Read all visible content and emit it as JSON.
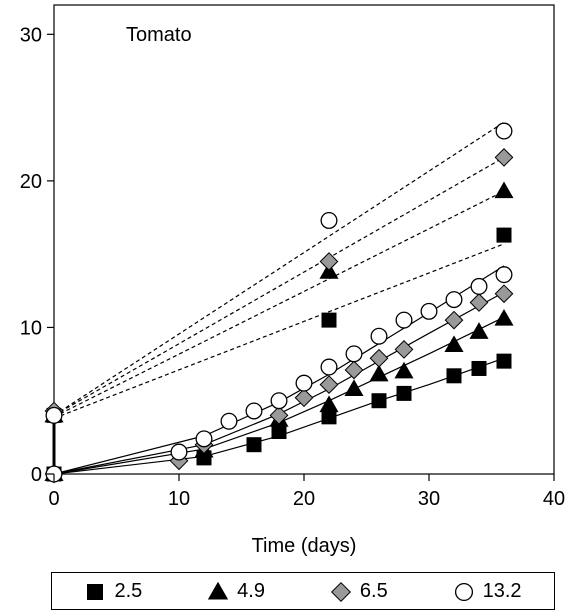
{
  "chart_data": {
    "type": "scatter",
    "title": "Tomato",
    "xlabel": "Time (days)",
    "ylabel": "",
    "xlim": [
      0,
      40
    ],
    "ylim": [
      0,
      32
    ],
    "xticks": [
      0,
      10,
      20,
      30,
      40
    ],
    "yticks": [
      0,
      10,
      20,
      30
    ],
    "grid": false,
    "legend_position": "bottom",
    "series": [
      {
        "name": "2.5",
        "marker": "square",
        "color": "#000000",
        "points": [
          [
            0,
            0
          ],
          [
            0,
            4.0
          ],
          [
            12,
            1.1
          ],
          [
            16,
            2.0
          ],
          [
            18,
            2.9
          ],
          [
            22,
            3.9
          ],
          [
            26,
            5.0
          ],
          [
            28,
            5.5
          ],
          [
            32,
            6.7
          ],
          [
            34,
            7.2
          ],
          [
            36,
            7.7
          ]
        ],
        "dashed_points": [
          [
            22,
            10.5
          ],
          [
            36,
            16.3
          ]
        ],
        "solid_fit": [
          [
            0,
            0
          ],
          [
            12,
            1.2
          ],
          [
            18,
            2.6
          ],
          [
            22,
            3.8
          ],
          [
            26,
            5.0
          ],
          [
            30,
            6.1
          ],
          [
            36,
            7.9
          ]
        ],
        "dashed_fit": [
          [
            0,
            3.8
          ],
          [
            36,
            15.7
          ]
        ]
      },
      {
        "name": "4.9",
        "marker": "triangle",
        "color": "#000000",
        "points": [
          [
            0,
            0
          ],
          [
            0,
            4.0
          ],
          [
            12,
            1.6
          ],
          [
            18,
            3.7
          ],
          [
            22,
            4.7
          ],
          [
            24,
            5.8
          ],
          [
            26,
            6.8
          ],
          [
            28,
            7.0
          ],
          [
            32,
            8.8
          ],
          [
            34,
            9.7
          ],
          [
            36,
            10.6
          ]
        ],
        "dashed_points": [
          [
            22,
            13.8
          ],
          [
            36,
            19.3
          ]
        ],
        "solid_fit": [
          [
            0,
            0
          ],
          [
            12,
            1.7
          ],
          [
            18,
            3.5
          ],
          [
            22,
            5.0
          ],
          [
            26,
            6.6
          ],
          [
            30,
            8.2
          ],
          [
            36,
            10.7
          ]
        ],
        "dashed_fit": [
          [
            0,
            3.9
          ],
          [
            36,
            19.3
          ]
        ]
      },
      {
        "name": "6.5",
        "marker": "diamond",
        "color": "#999999",
        "points": [
          [
            0,
            0
          ],
          [
            0,
            4.3
          ],
          [
            10,
            0.9
          ],
          [
            12,
            2.0
          ],
          [
            18,
            4.0
          ],
          [
            20,
            5.2
          ],
          [
            22,
            6.1
          ],
          [
            24,
            7.1
          ],
          [
            26,
            7.9
          ],
          [
            28,
            8.5
          ],
          [
            32,
            10.5
          ],
          [
            34,
            11.7
          ],
          [
            36,
            12.3
          ]
        ],
        "dashed_points": [
          [
            22,
            14.5
          ],
          [
            36,
            21.6
          ]
        ],
        "solid_fit": [
          [
            0,
            0
          ],
          [
            12,
            2.0
          ],
          [
            18,
            4.1
          ],
          [
            22,
            5.8
          ],
          [
            26,
            7.7
          ],
          [
            30,
            9.6
          ],
          [
            36,
            12.4
          ]
        ],
        "dashed_fit": [
          [
            0,
            4.0
          ],
          [
            36,
            21.6
          ]
        ]
      },
      {
        "name": "13.2",
        "marker": "circle",
        "color": "#ffffff",
        "points": [
          [
            0,
            0
          ],
          [
            0,
            4.0
          ],
          [
            10,
            1.5
          ],
          [
            12,
            2.4
          ],
          [
            14,
            3.6
          ],
          [
            16,
            4.3
          ],
          [
            18,
            5.0
          ],
          [
            20,
            6.2
          ],
          [
            22,
            7.3
          ],
          [
            24,
            8.2
          ],
          [
            26,
            9.4
          ],
          [
            28,
            10.5
          ],
          [
            30,
            11.1
          ],
          [
            32,
            11.9
          ],
          [
            34,
            12.8
          ],
          [
            36,
            13.6
          ]
        ],
        "dashed_points": [
          [
            22,
            17.3
          ],
          [
            36,
            23.4
          ]
        ],
        "solid_fit": [
          [
            0,
            0
          ],
          [
            12,
            2.6
          ],
          [
            18,
            4.9
          ],
          [
            22,
            6.8
          ],
          [
            26,
            8.9
          ],
          [
            30,
            11.0
          ],
          [
            36,
            14.2
          ]
        ],
        "dashed_fit": [
          [
            0,
            4.0
          ],
          [
            36,
            24.0
          ]
        ]
      }
    ]
  }
}
